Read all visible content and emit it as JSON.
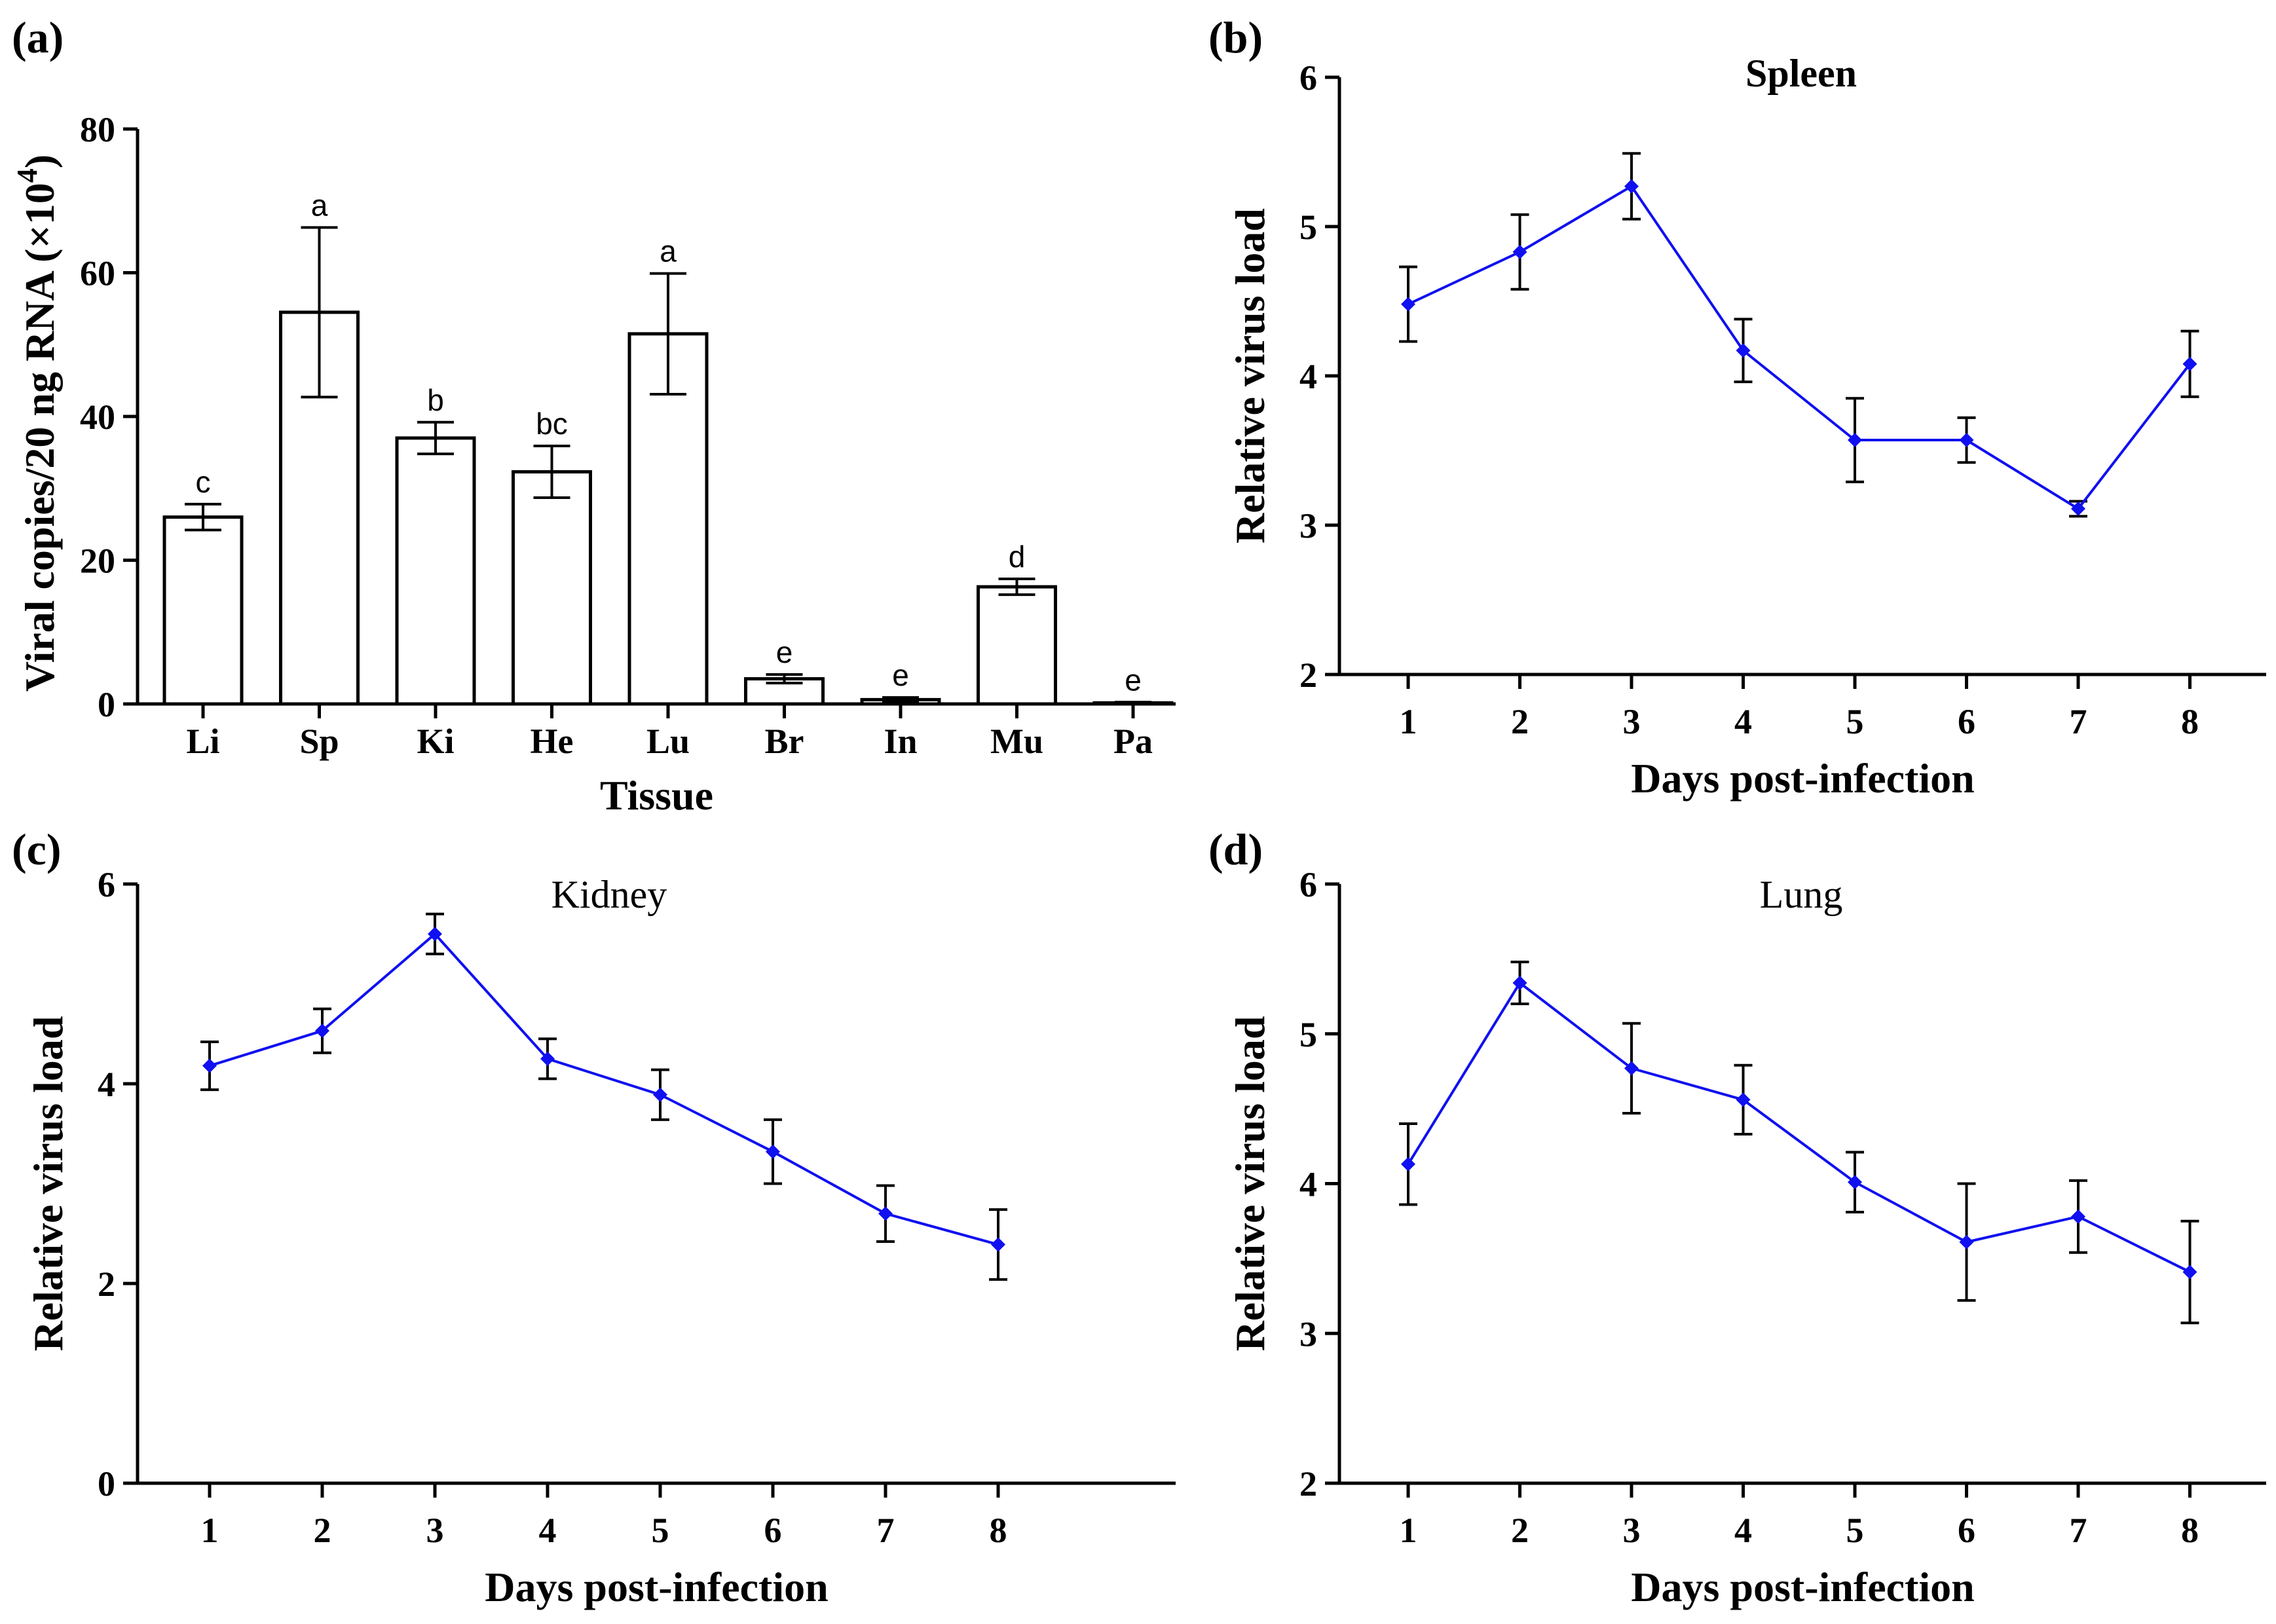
{
  "chart_data": [
    {
      "id": "a",
      "type": "bar",
      "panel_label": "(a)",
      "title": "",
      "xlabel": "Tissue",
      "ylabel_main": "Viral copies/20 ng RNA (×10",
      "ylabel_sup": "4",
      "ylabel_end": ")",
      "categories": [
        "Li",
        "Sp",
        "Ki",
        "He",
        "Lu",
        "Br",
        "In",
        "Mu",
        "Pa"
      ],
      "values": [
        26,
        54.5,
        37,
        32.3,
        51.5,
        3.5,
        0.6,
        16.3,
        0.15
      ],
      "errors": [
        1.8,
        11.8,
        2.2,
        3.6,
        8.4,
        0.6,
        0.3,
        1.1,
        0.1
      ],
      "significance": [
        "c",
        "a",
        "b",
        "bc",
        "a",
        "e",
        "e",
        "d",
        "e"
      ],
      "ylim": [
        0,
        80
      ],
      "yticks": [
        "0",
        "20",
        "40",
        "60",
        "80"
      ]
    },
    {
      "id": "b",
      "type": "line",
      "panel_label": "(b)",
      "title": "Spleen",
      "xlabel": "Days post-infection",
      "ylabel": "Relative virus load",
      "x": [
        "1",
        "2",
        "3",
        "4",
        "5",
        "6",
        "7",
        "8"
      ],
      "y": [
        4.48,
        4.83,
        5.27,
        4.17,
        3.57,
        3.57,
        3.11,
        4.08
      ],
      "errors": [
        0.25,
        0.25,
        0.22,
        0.21,
        0.28,
        0.15,
        0.05,
        0.22
      ],
      "ylim": [
        2,
        6
      ],
      "yticks": [
        "2",
        "3",
        "4",
        "5",
        "6"
      ],
      "color": "#1010f0"
    },
    {
      "id": "c",
      "type": "line",
      "panel_label": "(c)",
      "title": "Kidney",
      "xlabel": "Days post-infection",
      "ylabel": "Relative virus load",
      "x": [
        "1",
        "2",
        "3",
        "4",
        "5",
        "6",
        "7",
        "8"
      ],
      "y": [
        4.18,
        4.53,
        5.5,
        4.25,
        3.89,
        3.32,
        2.7,
        2.39
      ],
      "errors": [
        0.24,
        0.22,
        0.2,
        0.2,
        0.25,
        0.32,
        0.28,
        0.35
      ],
      "ylim": [
        0,
        6
      ],
      "yticks": [
        "0",
        "2",
        "4",
        "6"
      ],
      "color": "#1010f0"
    },
    {
      "id": "d",
      "type": "line",
      "panel_label": "(d)",
      "title": "Lung",
      "xlabel": "Days post-infection",
      "ylabel": "Relative virus load",
      "x": [
        "1",
        "2",
        "3",
        "4",
        "5",
        "6",
        "7",
        "8"
      ],
      "y": [
        4.13,
        5.34,
        4.77,
        4.56,
        4.01,
        3.61,
        3.78,
        3.41
      ],
      "errors": [
        0.27,
        0.14,
        0.3,
        0.23,
        0.2,
        0.39,
        0.24,
        0.34
      ],
      "ylim": [
        2,
        6
      ],
      "yticks": [
        "2",
        "3",
        "4",
        "5",
        "6"
      ],
      "color": "#1010f0"
    }
  ]
}
